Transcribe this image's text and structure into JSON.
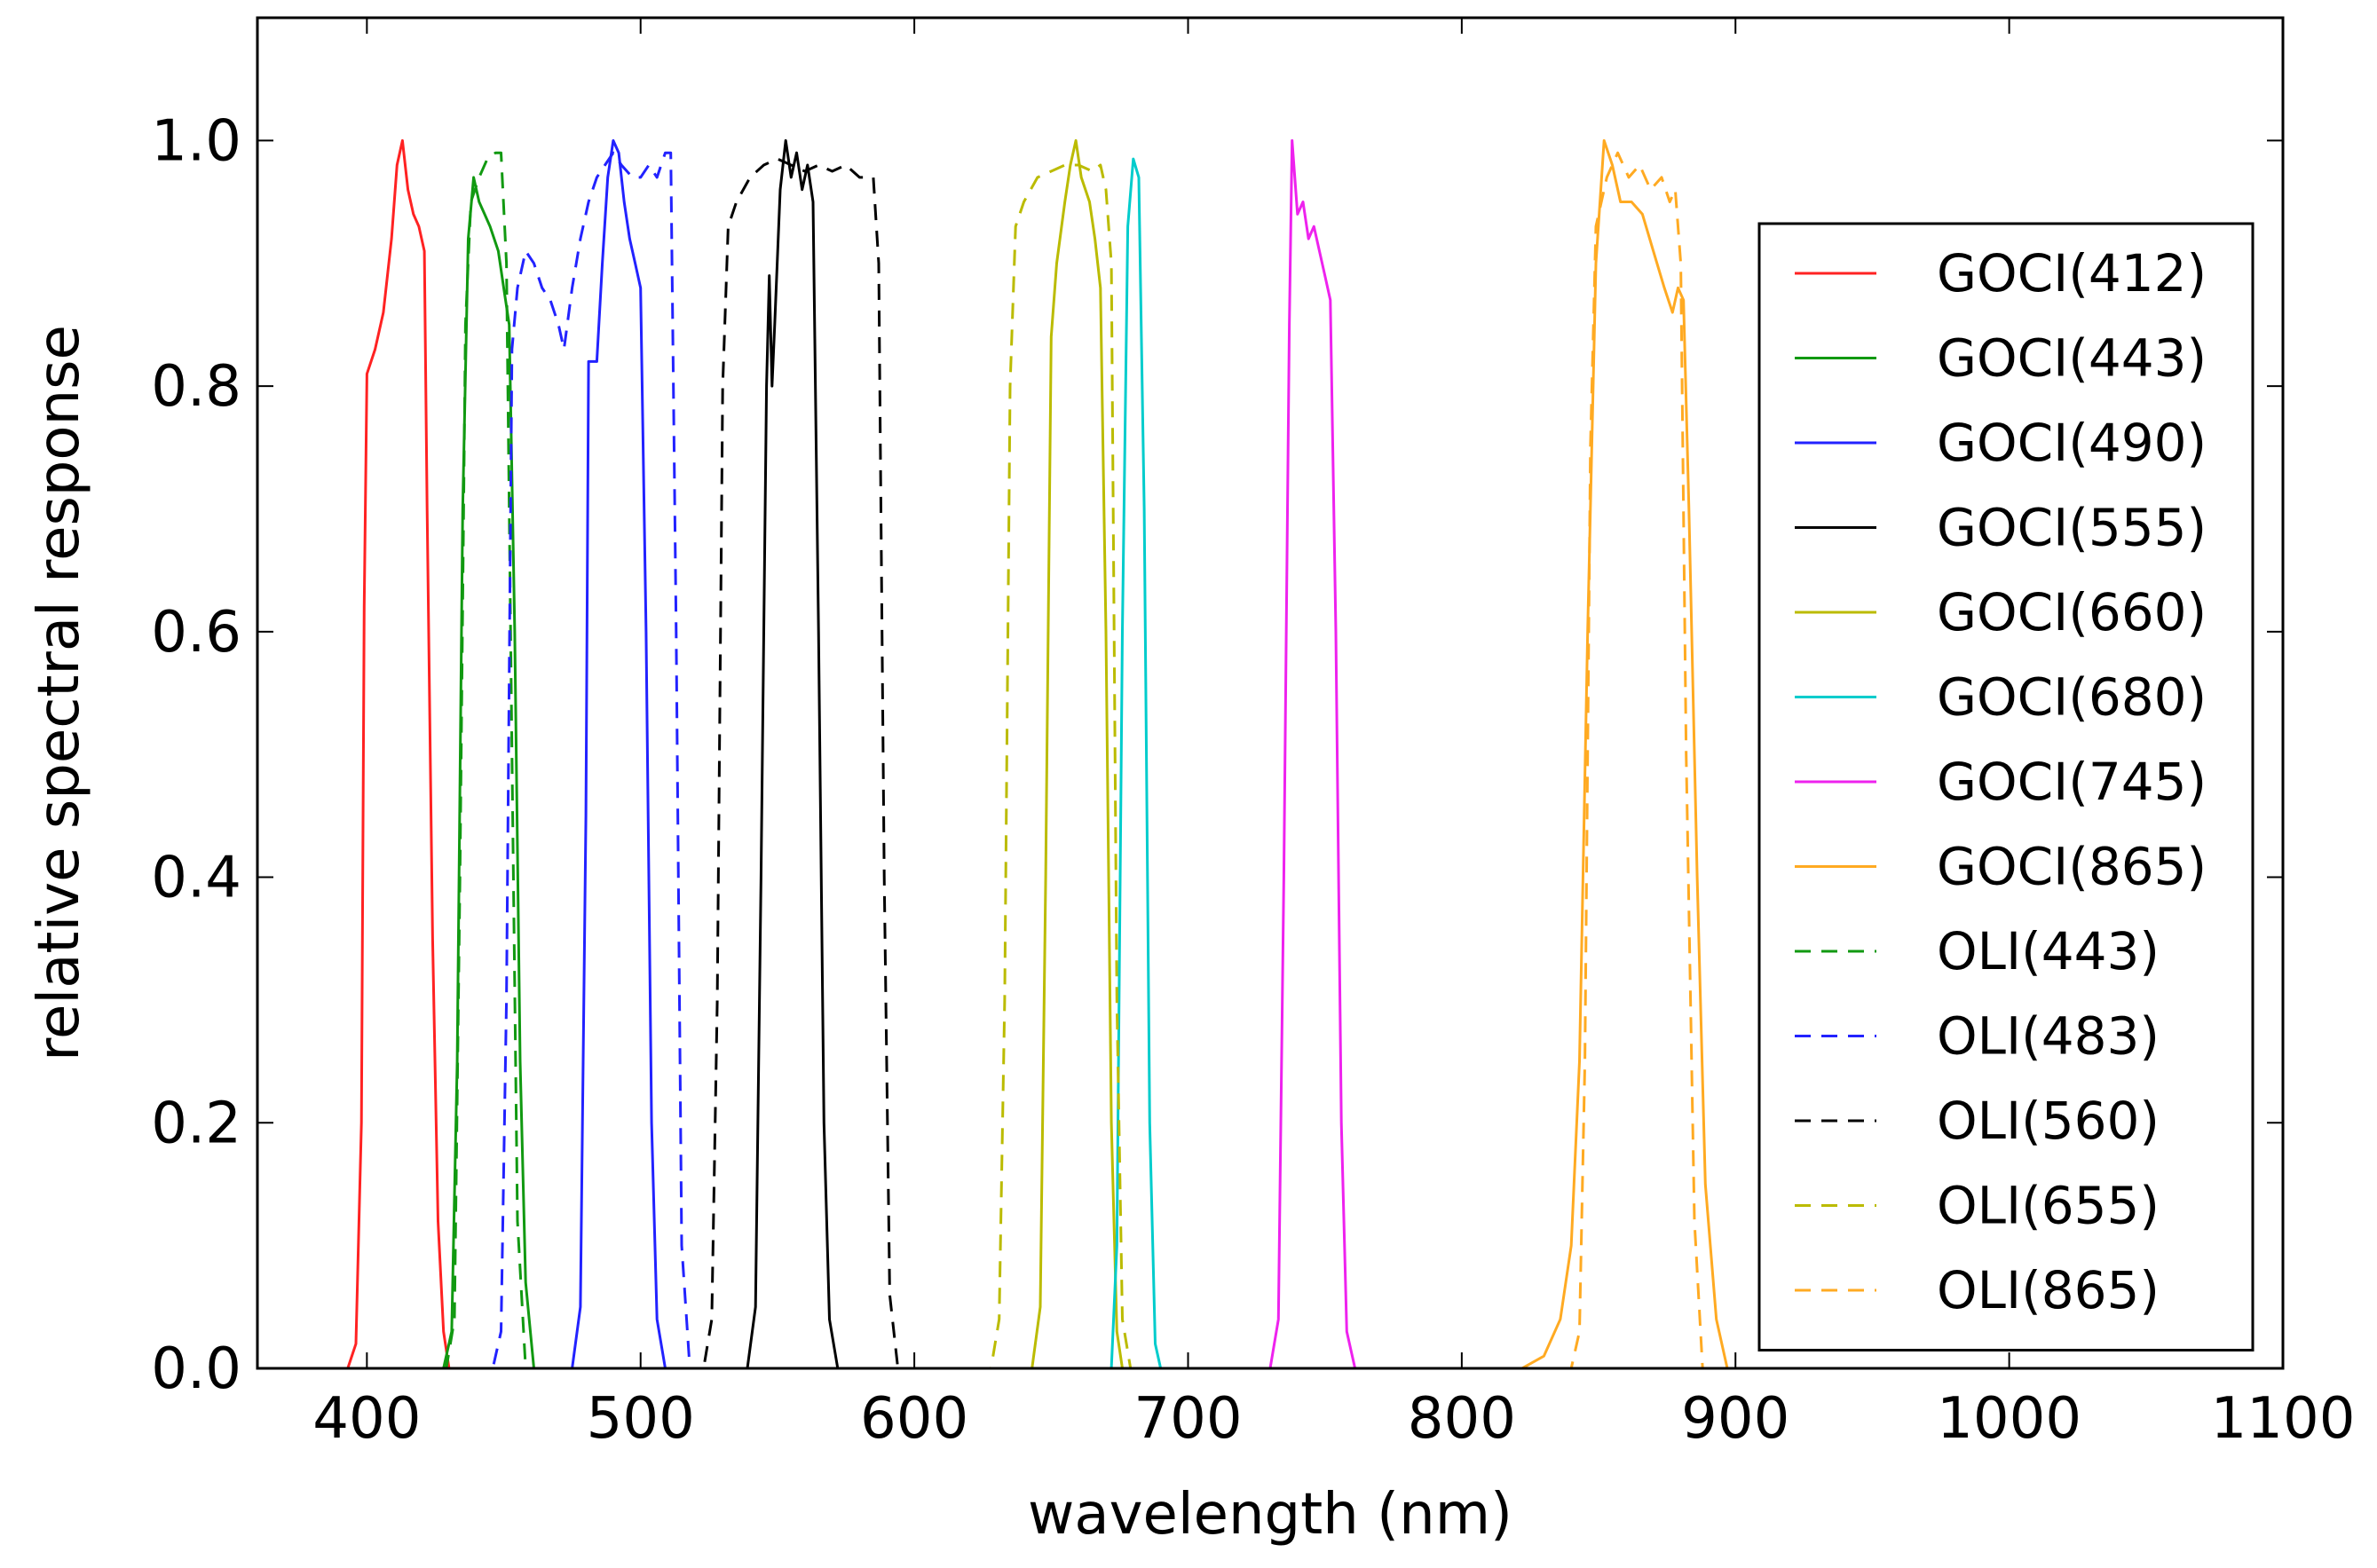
{
  "chart_data": {
    "type": "line",
    "title": "",
    "xlabel": "wavelength (nm)",
    "ylabel": "relative spectral response",
    "xlim": [
      360,
      1100
    ],
    "ylim": [
      0,
      1.1
    ],
    "x_ticks": [
      "400",
      "500",
      "600",
      "700",
      "800",
      "900",
      "1000",
      "1100"
    ],
    "y_ticks": [
      "0.0",
      "0.2",
      "0.4",
      "0.6",
      "0.8",
      "1.0"
    ],
    "grid": false,
    "legend_position": "right",
    "series": [
      {
        "name": "GOCI(412)",
        "color": "#ff2222",
        "style": "solid",
        "points": [
          [
            360,
            0
          ],
          [
            393,
            0
          ],
          [
            396,
            0.02
          ],
          [
            398,
            0.2
          ],
          [
            399,
            0.62
          ],
          [
            400,
            0.81
          ],
          [
            403,
            0.83
          ],
          [
            406,
            0.86
          ],
          [
            409,
            0.92
          ],
          [
            411,
            0.98
          ],
          [
            413,
            1.0
          ],
          [
            415,
            0.96
          ],
          [
            417,
            0.94
          ],
          [
            419,
            0.93
          ],
          [
            421,
            0.91
          ],
          [
            422,
            0.7
          ],
          [
            424,
            0.35
          ],
          [
            426,
            0.12
          ],
          [
            428,
            0.03
          ],
          [
            430,
            0
          ],
          [
            1100,
            0
          ]
        ]
      },
      {
        "name": "GOCI(443)",
        "color": "#119911",
        "style": "solid",
        "points": [
          [
            360,
            0
          ],
          [
            428,
            0
          ],
          [
            431,
            0.03
          ],
          [
            433,
            0.25
          ],
          [
            435,
            0.7
          ],
          [
            437,
            0.92
          ],
          [
            439,
            0.97
          ],
          [
            441,
            0.95
          ],
          [
            443,
            0.94
          ],
          [
            445,
            0.93
          ],
          [
            448,
            0.91
          ],
          [
            450,
            0.88
          ],
          [
            452,
            0.85
          ],
          [
            454,
            0.6
          ],
          [
            456,
            0.25
          ],
          [
            458,
            0.07
          ],
          [
            461,
            0
          ],
          [
            1100,
            0
          ]
        ]
      },
      {
        "name": "GOCI(490)",
        "color": "#2222ff",
        "style": "solid",
        "points": [
          [
            360,
            0
          ],
          [
            475,
            0
          ],
          [
            478,
            0.05
          ],
          [
            480,
            0.45
          ],
          [
            481,
            0.82
          ],
          [
            484,
            0.82
          ],
          [
            486,
            0.9
          ],
          [
            488,
            0.97
          ],
          [
            490,
            1.0
          ],
          [
            492,
            0.99
          ],
          [
            494,
            0.95
          ],
          [
            496,
            0.92
          ],
          [
            498,
            0.9
          ],
          [
            500,
            0.88
          ],
          [
            502,
            0.6
          ],
          [
            504,
            0.2
          ],
          [
            506,
            0.04
          ],
          [
            509,
            0
          ],
          [
            1100,
            0
          ]
        ]
      },
      {
        "name": "GOCI(555)",
        "color": "#000000",
        "style": "solid",
        "points": [
          [
            360,
            0
          ],
          [
            539,
            0
          ],
          [
            542,
            0.05
          ],
          [
            544,
            0.4
          ],
          [
            546,
            0.8
          ],
          [
            547,
            0.89
          ],
          [
            548,
            0.8
          ],
          [
            549,
            0.85
          ],
          [
            551,
            0.96
          ],
          [
            553,
            1.0
          ],
          [
            555,
            0.97
          ],
          [
            557,
            0.99
          ],
          [
            559,
            0.96
          ],
          [
            561,
            0.98
          ],
          [
            563,
            0.95
          ],
          [
            565,
            0.6
          ],
          [
            567,
            0.2
          ],
          [
            569,
            0.04
          ],
          [
            572,
            0
          ],
          [
            1100,
            0
          ]
        ]
      },
      {
        "name": "GOCI(660)",
        "color": "#bbbb00",
        "style": "solid",
        "points": [
          [
            360,
            0
          ],
          [
            643,
            0
          ],
          [
            646,
            0.05
          ],
          [
            648,
            0.4
          ],
          [
            650,
            0.84
          ],
          [
            652,
            0.9
          ],
          [
            655,
            0.95
          ],
          [
            657,
            0.98
          ],
          [
            659,
            1.0
          ],
          [
            661,
            0.97
          ],
          [
            664,
            0.95
          ],
          [
            666,
            0.92
          ],
          [
            668,
            0.88
          ],
          [
            670,
            0.6
          ],
          [
            672,
            0.2
          ],
          [
            674,
            0.03
          ],
          [
            676,
            0
          ],
          [
            1100,
            0
          ]
        ]
      },
      {
        "name": "GOCI(680)",
        "color": "#00cccc",
        "style": "solid",
        "points": [
          [
            360,
            0
          ],
          [
            672,
            0
          ],
          [
            674,
            0.1
          ],
          [
            676,
            0.6
          ],
          [
            678,
            0.93
          ],
          [
            680,
            0.985
          ],
          [
            682,
            0.97
          ],
          [
            684,
            0.7
          ],
          [
            686,
            0.2
          ],
          [
            688,
            0.02
          ],
          [
            690,
            0
          ],
          [
            1100,
            0
          ]
        ]
      },
      {
        "name": "GOCI(745)",
        "color": "#ee22ee",
        "style": "solid",
        "points": [
          [
            360,
            0
          ],
          [
            730,
            0
          ],
          [
            733,
            0.04
          ],
          [
            735,
            0.4
          ],
          [
            737,
            0.85
          ],
          [
            738,
            1.0
          ],
          [
            740,
            0.94
          ],
          [
            742,
            0.95
          ],
          [
            744,
            0.92
          ],
          [
            746,
            0.93
          ],
          [
            748,
            0.91
          ],
          [
            750,
            0.89
          ],
          [
            752,
            0.87
          ],
          [
            754,
            0.6
          ],
          [
            756,
            0.2
          ],
          [
            758,
            0.03
          ],
          [
            761,
            0
          ],
          [
            1100,
            0
          ]
        ]
      },
      {
        "name": "GOCI(865)",
        "color": "#ffaa22",
        "style": "solid",
        "points": [
          [
            360,
            0
          ],
          [
            822,
            0
          ],
          [
            830,
            0.01
          ],
          [
            836,
            0.04
          ],
          [
            840,
            0.1
          ],
          [
            843,
            0.25
          ],
          [
            846,
            0.6
          ],
          [
            849,
            0.9
          ],
          [
            852,
            1.0
          ],
          [
            855,
            0.98
          ],
          [
            858,
            0.95
          ],
          [
            862,
            0.95
          ],
          [
            866,
            0.94
          ],
          [
            870,
            0.91
          ],
          [
            874,
            0.88
          ],
          [
            877,
            0.86
          ],
          [
            879,
            0.88
          ],
          [
            881,
            0.87
          ],
          [
            883,
            0.7
          ],
          [
            886,
            0.4
          ],
          [
            889,
            0.15
          ],
          [
            893,
            0.04
          ],
          [
            897,
            0
          ],
          [
            1100,
            0
          ]
        ]
      },
      {
        "name": "OLI(443)",
        "color": "#119911",
        "style": "dashed",
        "points": [
          [
            360,
            0
          ],
          [
            429,
            0
          ],
          [
            432,
            0.04
          ],
          [
            434,
            0.4
          ],
          [
            436,
            0.85
          ],
          [
            438,
            0.95
          ],
          [
            441,
            0.97
          ],
          [
            444,
            0.985
          ],
          [
            447,
            0.99
          ],
          [
            449,
            0.99
          ],
          [
            451,
            0.9
          ],
          [
            453,
            0.5
          ],
          [
            455,
            0.12
          ],
          [
            458,
            0
          ],
          [
            1100,
            0
          ]
        ]
      },
      {
        "name": "OLI(483)",
        "color": "#2222ff",
        "style": "dashed",
        "points": [
          [
            360,
            0
          ],
          [
            446,
            0
          ],
          [
            449,
            0.03
          ],
          [
            451,
            0.3
          ],
          [
            453,
            0.83
          ],
          [
            455,
            0.88
          ],
          [
            458,
            0.91
          ],
          [
            461,
            0.9
          ],
          [
            464,
            0.88
          ],
          [
            467,
            0.87
          ],
          [
            470,
            0.85
          ],
          [
            472,
            0.83
          ],
          [
            475,
            0.88
          ],
          [
            478,
            0.92
          ],
          [
            481,
            0.95
          ],
          [
            484,
            0.97
          ],
          [
            487,
            0.98
          ],
          [
            490,
            0.99
          ],
          [
            493,
            0.98
          ],
          [
            497,
            0.97
          ],
          [
            500,
            0.97
          ],
          [
            503,
            0.98
          ],
          [
            506,
            0.97
          ],
          [
            509,
            0.99
          ],
          [
            511,
            0.99
          ],
          [
            513,
            0.6
          ],
          [
            515,
            0.1
          ],
          [
            518,
            0
          ],
          [
            1100,
            0
          ]
        ]
      },
      {
        "name": "OLI(560)",
        "color": "#000000",
        "style": "dashed",
        "points": [
          [
            360,
            0
          ],
          [
            523,
            0
          ],
          [
            526,
            0.04
          ],
          [
            528,
            0.3
          ],
          [
            530,
            0.8
          ],
          [
            532,
            0.93
          ],
          [
            535,
            0.95
          ],
          [
            540,
            0.97
          ],
          [
            545,
            0.98
          ],
          [
            550,
            0.985
          ],
          [
            555,
            0.98
          ],
          [
            560,
            0.975
          ],
          [
            565,
            0.98
          ],
          [
            570,
            0.975
          ],
          [
            575,
            0.98
          ],
          [
            580,
            0.97
          ],
          [
            585,
            0.97
          ],
          [
            587,
            0.9
          ],
          [
            589,
            0.4
          ],
          [
            591,
            0.06
          ],
          [
            594,
            0
          ],
          [
            1100,
            0
          ]
        ]
      },
      {
        "name": "OLI(655)",
        "color": "#bbbb00",
        "style": "dashed",
        "points": [
          [
            360,
            0
          ],
          [
            628,
            0
          ],
          [
            631,
            0.04
          ],
          [
            633,
            0.3
          ],
          [
            635,
            0.8
          ],
          [
            637,
            0.93
          ],
          [
            640,
            0.95
          ],
          [
            645,
            0.97
          ],
          [
            650,
            0.975
          ],
          [
            655,
            0.98
          ],
          [
            660,
            0.98
          ],
          [
            665,
            0.975
          ],
          [
            668,
            0.98
          ],
          [
            670,
            0.96
          ],
          [
            672,
            0.9
          ],
          [
            674,
            0.3
          ],
          [
            676,
            0.04
          ],
          [
            679,
            0
          ],
          [
            1100,
            0
          ]
        ]
      },
      {
        "name": "OLI(865)",
        "color": "#ffaa22",
        "style": "dashed",
        "points": [
          [
            360,
            0
          ],
          [
            840,
            0
          ],
          [
            843,
            0.03
          ],
          [
            845,
            0.25
          ],
          [
            847,
            0.75
          ],
          [
            849,
            0.93
          ],
          [
            853,
            0.97
          ],
          [
            857,
            0.99
          ],
          [
            861,
            0.97
          ],
          [
            865,
            0.98
          ],
          [
            869,
            0.96
          ],
          [
            873,
            0.97
          ],
          [
            876,
            0.95
          ],
          [
            878,
            0.96
          ],
          [
            880,
            0.9
          ],
          [
            882,
            0.5
          ],
          [
            885,
            0.12
          ],
          [
            888,
            0
          ],
          [
            1100,
            0
          ]
        ]
      }
    ]
  }
}
